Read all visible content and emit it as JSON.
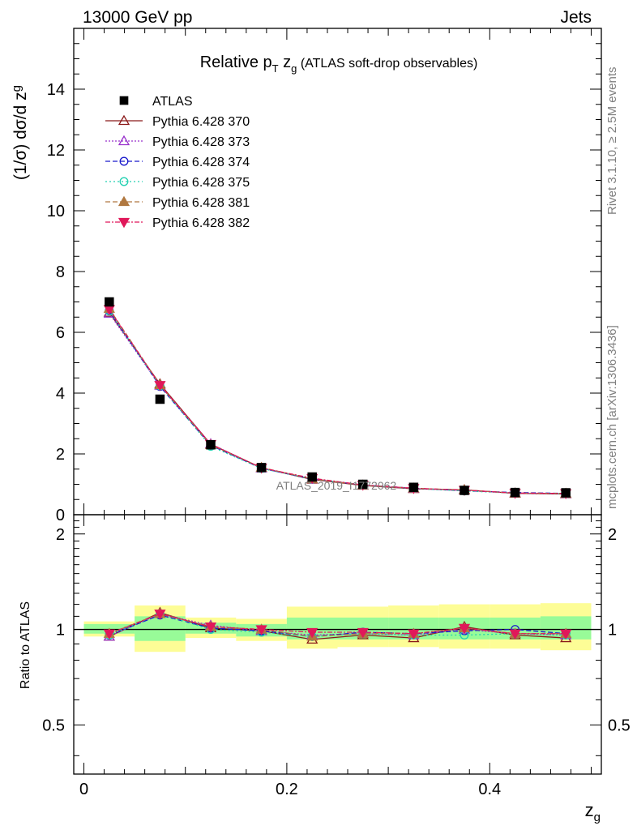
{
  "header": {
    "energy_label": "13000 GeV pp",
    "process_label": "Jets",
    "side_top": "Rivet 3.1.10, ≥ 2.5M events",
    "side_bottom": "mcplots.cern.ch [arXiv:1306.3436]",
    "watermark": "ATLAS_2019_I1772062"
  },
  "chart_data": {
    "type": "line",
    "title": "Relative p_T z_g (ATLAS soft-drop observables)",
    "xlabel": "z_g",
    "ylabel": "(1/σ) dσ/d z_g",
    "ratio_ylabel": "Ratio to ATLAS",
    "xlim": [
      -0.01,
      0.51
    ],
    "ylim": [
      0,
      16
    ],
    "ratio_ylim": [
      0.35,
      2.3
    ],
    "ratio_scale": "log",
    "x_ticks": [
      "0",
      "0.2",
      "0.4"
    ],
    "y_ticks": [
      "0",
      "2",
      "4",
      "6",
      "8",
      "10",
      "12",
      "14"
    ],
    "ratio_ticks": [
      "0.5",
      "1",
      "2"
    ],
    "legend_position": "top-left",
    "bin_edges": [
      0.0,
      0.05,
      0.1,
      0.15,
      0.2,
      0.25,
      0.3,
      0.35,
      0.4,
      0.45,
      0.5
    ],
    "x": [
      0.025,
      0.075,
      0.125,
      0.175,
      0.225,
      0.275,
      0.325,
      0.375,
      0.425,
      0.475
    ],
    "data": {
      "name": "ATLAS",
      "values": [
        7.0,
        3.8,
        2.3,
        1.55,
        1.24,
        1.0,
        0.9,
        0.8,
        0.73,
        0.72
      ],
      "band_green": [
        [
          0.97,
          1.04
        ],
        [
          0.92,
          1.1
        ],
        [
          0.97,
          1.05
        ],
        [
          0.95,
          1.04
        ],
        [
          0.93,
          1.09
        ],
        [
          0.93,
          1.09
        ],
        [
          0.93,
          1.09
        ],
        [
          0.93,
          1.09
        ],
        [
          0.93,
          1.09
        ],
        [
          0.93,
          1.1
        ]
      ],
      "band_yellow": [
        [
          0.95,
          1.06
        ],
        [
          0.85,
          1.19
        ],
        [
          0.94,
          1.09
        ],
        [
          0.92,
          1.08
        ],
        [
          0.87,
          1.18
        ],
        [
          0.88,
          1.18
        ],
        [
          0.88,
          1.19
        ],
        [
          0.87,
          1.2
        ],
        [
          0.87,
          1.2
        ],
        [
          0.86,
          1.21
        ]
      ]
    },
    "series": [
      {
        "name": "Pythia 6.428 370",
        "color": "#8b1a1a",
        "dash": "",
        "marker": "triangle-open",
        "values": [
          6.65,
          4.3,
          2.32,
          1.54,
          1.16,
          0.96,
          0.85,
          0.82,
          0.7,
          0.68
        ],
        "ratios": [
          0.95,
          1.13,
          1.01,
          0.99,
          0.93,
          0.96,
          0.94,
          1.02,
          0.96,
          0.94
        ]
      },
      {
        "name": "Pythia 6.428 373",
        "color": "#9932cc",
        "dash": "2,2",
        "marker": "triangle-open",
        "values": [
          6.62,
          4.25,
          2.33,
          1.53,
          1.19,
          0.97,
          0.86,
          0.8,
          0.71,
          0.69
        ],
        "ratios": [
          0.95,
          1.12,
          1.03,
          0.99,
          0.96,
          0.97,
          0.96,
          1.0,
          0.97,
          0.96
        ]
      },
      {
        "name": "Pythia 6.428 374",
        "color": "#1a1acc",
        "dash": "6,3",
        "marker": "circle-open",
        "values": [
          6.72,
          4.22,
          2.28,
          1.53,
          1.17,
          0.98,
          0.87,
          0.79,
          0.73,
          0.7
        ],
        "ratios": [
          0.96,
          1.11,
          1.01,
          0.99,
          0.95,
          0.98,
          0.97,
          0.99,
          1.0,
          0.97
        ]
      },
      {
        "name": "Pythia 6.428 375",
        "color": "#20d0b0",
        "dash": "2,3",
        "marker": "circle-open",
        "values": [
          6.7,
          4.24,
          2.25,
          1.52,
          1.18,
          0.97,
          0.86,
          0.78,
          0.71,
          0.69
        ],
        "ratios": [
          0.96,
          1.12,
          1.0,
          0.98,
          0.95,
          0.97,
          0.96,
          0.96,
          0.97,
          0.96
        ]
      },
      {
        "name": "Pythia 6.428 381",
        "color": "#b07840",
        "dash": "6,3",
        "marker": "triangle-filled",
        "values": [
          6.78,
          4.27,
          2.3,
          1.55,
          1.18,
          0.97,
          0.87,
          0.81,
          0.71,
          0.7
        ],
        "ratios": [
          0.97,
          1.12,
          1.02,
          1.0,
          0.95,
          0.97,
          0.97,
          1.01,
          0.97,
          0.97
        ]
      },
      {
        "name": "Pythia 6.428 382",
        "color": "#e0185a",
        "dash": "6,2,2,2",
        "marker": "triangle-down-filled",
        "values": [
          6.76,
          4.26,
          2.32,
          1.54,
          1.2,
          0.98,
          0.87,
          0.81,
          0.71,
          0.7
        ],
        "ratios": [
          0.97,
          1.12,
          1.02,
          1.0,
          0.98,
          0.98,
          0.97,
          1.01,
          0.97,
          0.97
        ]
      }
    ]
  }
}
